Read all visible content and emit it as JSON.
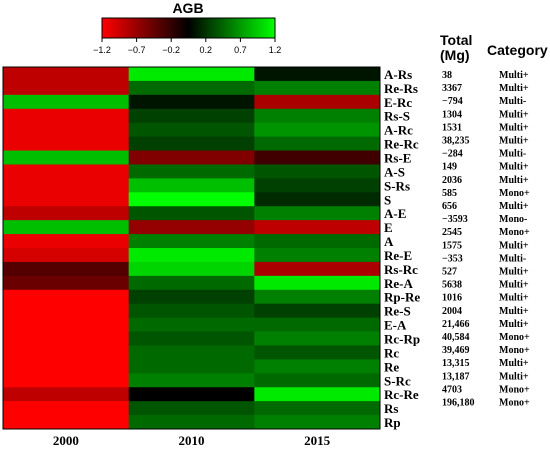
{
  "chart_data": {
    "type": "heatmap",
    "colorbar": {
      "title": "AGB",
      "ticks": [
        "−1.2",
        "−0.7",
        "−0.2",
        "0.2",
        "0.7",
        "1.2"
      ],
      "range": [
        -1.2,
        1.2
      ],
      "colors": {
        "low": "#ff0000",
        "mid": "#000000",
        "high": "#00ff00"
      }
    },
    "columns": [
      "2000",
      "2010",
      "2015"
    ],
    "headers": {
      "total": "Total\n(Mg)",
      "category": "Category"
    },
    "rows": [
      {
        "label": "A-Rs",
        "total": "38",
        "category": "Multi+",
        "values": [
          -0.9,
          1.1,
          0.1
        ]
      },
      {
        "label": "Re-Rs",
        "total": "3367",
        "category": "Multi+",
        "values": [
          -0.9,
          0.5,
          0.6
        ]
      },
      {
        "label": "E-Rc",
        "total": "−794",
        "category": "Multi-",
        "values": [
          0.9,
          0.1,
          -0.8
        ]
      },
      {
        "label": "Rs-S",
        "total": "1304",
        "category": "Multi+",
        "values": [
          -1.1,
          0.3,
          0.6
        ]
      },
      {
        "label": "A-Rc",
        "total": "1531",
        "category": "Multi+",
        "values": [
          -1.1,
          0.4,
          0.7
        ]
      },
      {
        "label": "Re-Rc",
        "total": "38,235",
        "category": "Multi+",
        "values": [
          -1.1,
          0.3,
          0.5
        ]
      },
      {
        "label": "Rs-E",
        "total": "−284",
        "category": "Multi-",
        "values": [
          0.9,
          -0.6,
          -0.3
        ]
      },
      {
        "label": "A-S",
        "total": "149",
        "category": "Multi+",
        "values": [
          -1.1,
          0.5,
          0.4
        ]
      },
      {
        "label": "S-Rs",
        "total": "2036",
        "category": "Multi+",
        "values": [
          -1.1,
          0.9,
          0.3
        ]
      },
      {
        "label": "S",
        "total": "585",
        "category": "Mono+",
        "values": [
          -1.1,
          1.2,
          0.2
        ]
      },
      {
        "label": "A-E",
        "total": "656",
        "category": "Multi+",
        "values": [
          -0.9,
          0.4,
          0.6
        ]
      },
      {
        "label": "E",
        "total": "−3593",
        "category": "Mono-",
        "values": [
          0.9,
          -0.7,
          -0.9
        ]
      },
      {
        "label": "A",
        "total": "2545",
        "category": "Mono+",
        "values": [
          -1.1,
          0.6,
          0.5
        ]
      },
      {
        "label": "Re-E",
        "total": "1575",
        "category": "Multi+",
        "values": [
          -1.0,
          1.1,
          0.6
        ]
      },
      {
        "label": "Rs-Rc",
        "total": "−353",
        "category": "Multi-",
        "values": [
          -0.4,
          1.0,
          -0.8
        ]
      },
      {
        "label": "Re-A",
        "total": "527",
        "category": "Multi+",
        "values": [
          -0.5,
          0.5,
          1.1
        ]
      },
      {
        "label": "Rp-Re",
        "total": "5638",
        "category": "Multi+",
        "values": [
          -1.2,
          0.3,
          0.6
        ]
      },
      {
        "label": "Re-S",
        "total": "1016",
        "category": "Multi+",
        "values": [
          -1.2,
          0.4,
          0.3
        ]
      },
      {
        "label": "E-A",
        "total": "2004",
        "category": "Multi+",
        "values": [
          -1.2,
          0.5,
          0.5
        ]
      },
      {
        "label": "Rc-Rp",
        "total": "21,466",
        "category": "Multi+",
        "values": [
          -1.2,
          0.4,
          0.6
        ]
      },
      {
        "label": "Rc",
        "total": "40,584",
        "category": "Mono+",
        "values": [
          -1.2,
          0.5,
          0.4
        ]
      },
      {
        "label": "Re",
        "total": "39,469",
        "category": "Mono+",
        "values": [
          -1.2,
          0.5,
          0.6
        ]
      },
      {
        "label": "S-Rc",
        "total": "13,315",
        "category": "Multi+",
        "values": [
          -1.2,
          0.6,
          0.5
        ]
      },
      {
        "label": "Rc-Re",
        "total": "13,187",
        "category": "Multi+",
        "values": [
          -0.9,
          0.0,
          1.1
        ]
      },
      {
        "label": "Rs",
        "total": "4703",
        "category": "Mono+",
        "values": [
          -1.2,
          0.4,
          0.5
        ]
      },
      {
        "label": "Rp",
        "total": "196,180",
        "category": "Mono+",
        "values": [
          -1.2,
          0.5,
          0.6
        ]
      }
    ]
  }
}
